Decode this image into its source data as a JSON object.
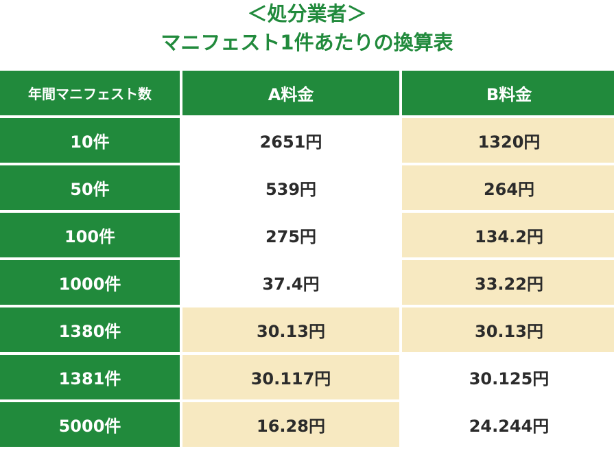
{
  "title": {
    "line1": "＜処分業者＞",
    "line2": "マニフェスト1件あたりの換算表"
  },
  "table": {
    "headers": [
      "年間マニフェスト数",
      "A料金",
      "B料金"
    ],
    "rows": [
      {
        "count": "10件",
        "a": "2651円",
        "b": "1320円",
        "a_highlight": false,
        "b_highlight": true
      },
      {
        "count": "50件",
        "a": "539円",
        "b": "264円",
        "a_highlight": false,
        "b_highlight": true
      },
      {
        "count": "100件",
        "a": "275円",
        "b": "134.2円",
        "a_highlight": false,
        "b_highlight": true
      },
      {
        "count": "1000件",
        "a": "37.4円",
        "b": "33.22円",
        "a_highlight": false,
        "b_highlight": true
      },
      {
        "count": "1380件",
        "a": "30.13円",
        "b": "30.13円",
        "a_highlight": true,
        "b_highlight": true
      },
      {
        "count": "1381件",
        "a": "30.117円",
        "b": "30.125円",
        "a_highlight": true,
        "b_highlight": false
      },
      {
        "count": "5000件",
        "a": "16.28円",
        "b": "24.244円",
        "a_highlight": true,
        "b_highlight": false
      }
    ]
  },
  "colors": {
    "header_green": "#218a3c",
    "highlight_cream": "#f7e9c1",
    "text_dark": "#2b2b2b"
  }
}
